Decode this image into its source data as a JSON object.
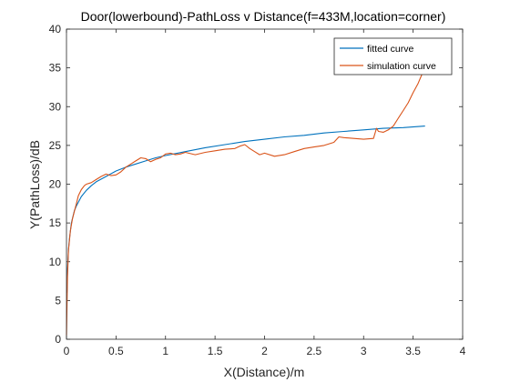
{
  "chart_data": {
    "type": "line",
    "title": "Door(lowerbound)-PathLoss v Distance(f=433M,location=corner)",
    "xlabel": "X(Distance)/m",
    "ylabel": "Y(PathLoss)/dB",
    "xlim": [
      0,
      4
    ],
    "ylim": [
      0,
      40
    ],
    "xticks": [
      "0",
      "0.5",
      "1",
      "1.5",
      "2",
      "2.5",
      "3",
      "3.5",
      "4"
    ],
    "yticks": [
      "0",
      "5",
      "10",
      "15",
      "20",
      "25",
      "30",
      "35",
      "40"
    ],
    "grid": false,
    "legend_position": "top-right",
    "series": [
      {
        "name": "fitted curve",
        "color": "#0072BD",
        "x": [
          0.005,
          0.01,
          0.02,
          0.03,
          0.05,
          0.08,
          0.1,
          0.15,
          0.2,
          0.25,
          0.3,
          0.4,
          0.5,
          0.6,
          0.7,
          0.8,
          0.9,
          1.0,
          1.2,
          1.4,
          1.6,
          1.8,
          2.0,
          2.2,
          2.4,
          2.6,
          2.8,
          3.0,
          3.2,
          3.4,
          3.62
        ],
        "y": [
          6.0,
          9.0,
          11.6,
          13.0,
          15.0,
          16.6,
          17.2,
          18.4,
          19.2,
          19.8,
          20.3,
          21.0,
          21.7,
          22.2,
          22.6,
          23.0,
          23.4,
          23.7,
          24.2,
          24.7,
          25.1,
          25.5,
          25.8,
          26.1,
          26.3,
          26.6,
          26.8,
          27.0,
          27.2,
          27.3,
          27.5
        ]
      },
      {
        "name": "simulation curve",
        "color": "#D95319",
        "x": [
          0.0,
          0.01,
          0.02,
          0.04,
          0.06,
          0.08,
          0.1,
          0.12,
          0.15,
          0.18,
          0.2,
          0.25,
          0.3,
          0.35,
          0.4,
          0.45,
          0.5,
          0.55,
          0.6,
          0.65,
          0.7,
          0.75,
          0.8,
          0.85,
          0.9,
          0.95,
          1.0,
          1.05,
          1.1,
          1.15,
          1.2,
          1.3,
          1.4,
          1.5,
          1.6,
          1.7,
          1.75,
          1.8,
          1.85,
          1.9,
          1.95,
          2.0,
          2.1,
          2.2,
          2.3,
          2.4,
          2.5,
          2.6,
          2.7,
          2.75,
          2.8,
          2.9,
          3.0,
          3.1,
          3.13,
          3.15,
          3.2,
          3.25,
          3.3,
          3.35,
          3.4,
          3.45,
          3.5,
          3.55,
          3.6,
          3.62
        ],
        "y": [
          0.5,
          8.0,
          11.5,
          14.0,
          15.5,
          16.5,
          17.5,
          18.5,
          19.3,
          19.8,
          20.0,
          20.2,
          20.6,
          21.0,
          21.3,
          21.1,
          21.2,
          21.6,
          22.2,
          22.6,
          23.0,
          23.4,
          23.3,
          22.9,
          23.2,
          23.4,
          23.9,
          24.0,
          23.8,
          23.9,
          24.1,
          23.8,
          24.1,
          24.3,
          24.5,
          24.6,
          24.9,
          25.1,
          24.6,
          24.2,
          23.8,
          24.0,
          23.6,
          23.8,
          24.2,
          24.6,
          24.8,
          25.0,
          25.4,
          26.1,
          26.0,
          25.9,
          25.8,
          25.9,
          27.2,
          26.8,
          26.7,
          27.0,
          27.5,
          28.5,
          29.5,
          30.5,
          31.8,
          33.0,
          34.5,
          35.2
        ]
      }
    ]
  }
}
